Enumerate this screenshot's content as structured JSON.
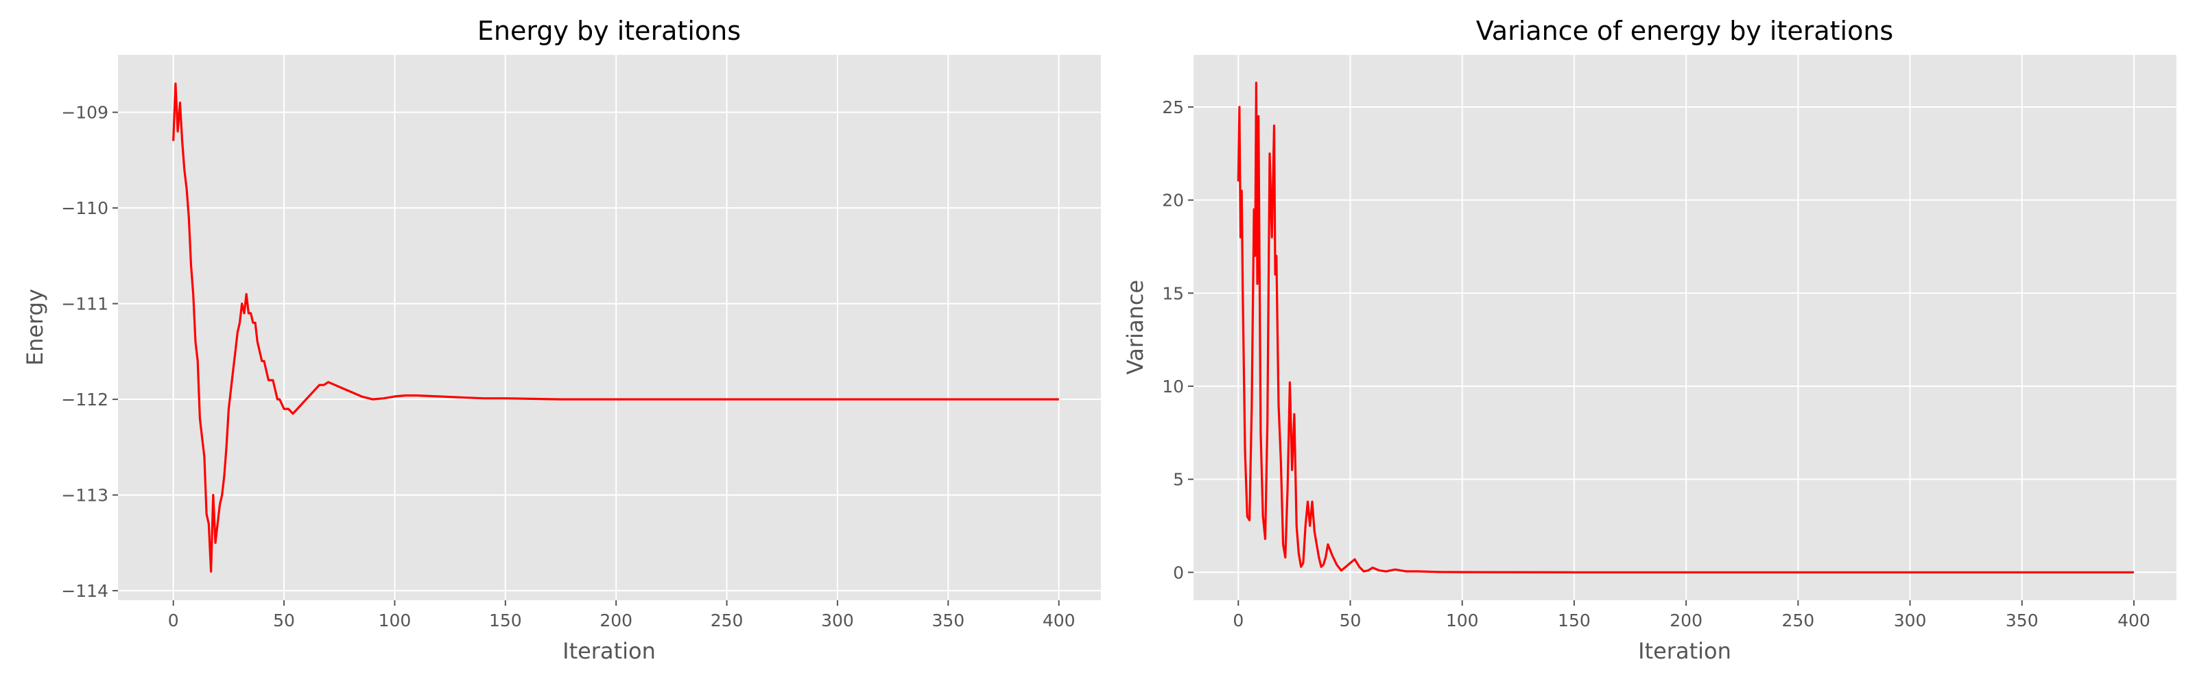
{
  "chart_data": [
    {
      "type": "line",
      "title": "Energy by iterations",
      "xlabel": "Iteration",
      "ylabel": "Energy",
      "xlim": [
        -25,
        419
      ],
      "ylim": [
        -114.1,
        -108.4
      ],
      "xticks": [
        0,
        50,
        100,
        150,
        200,
        250,
        300,
        350,
        400
      ],
      "xtick_labels": [
        "0",
        "50",
        "100",
        "150",
        "200",
        "250",
        "300",
        "350",
        "400"
      ],
      "yticks": [
        -114,
        -113,
        -112,
        -111,
        -110,
        -109
      ],
      "ytick_labels": [
        "−114",
        "−113",
        "−112",
        "−111",
        "−110",
        "−109"
      ],
      "grid": true,
      "line_color": "#ff0000",
      "series": [
        {
          "x": [
            0,
            1,
            2,
            3,
            4,
            5,
            6,
            7,
            8,
            9,
            10,
            11,
            12,
            13,
            14,
            15,
            16,
            17,
            18,
            19,
            20,
            21,
            22,
            23,
            24,
            25,
            26,
            27,
            28,
            29,
            30,
            31,
            32,
            33,
            34,
            35,
            36,
            37,
            38,
            39,
            40,
            41,
            42,
            43,
            44,
            45,
            46,
            47,
            48,
            50,
            52,
            54,
            56,
            58,
            60,
            62,
            64,
            66,
            68,
            70,
            73,
            76,
            80,
            85,
            90,
            95,
            100,
            105,
            110,
            120,
            130,
            140,
            150,
            175,
            200,
            250,
            300,
            350,
            400
          ],
          "y": [
            -109.3,
            -108.7,
            -109.2,
            -108.9,
            -109.3,
            -109.6,
            -109.8,
            -110.1,
            -110.6,
            -110.9,
            -111.4,
            -111.6,
            -112.2,
            -112.4,
            -112.6,
            -113.2,
            -113.3,
            -113.8,
            -113.0,
            -113.5,
            -113.3,
            -113.1,
            -113.0,
            -112.8,
            -112.5,
            -112.1,
            -111.9,
            -111.7,
            -111.5,
            -111.3,
            -111.2,
            -111.0,
            -111.1,
            -110.9,
            -111.1,
            -111.1,
            -111.2,
            -111.2,
            -111.4,
            -111.5,
            -111.6,
            -111.6,
            -111.7,
            -111.8,
            -111.8,
            -111.8,
            -111.9,
            -112.0,
            -112.0,
            -112.1,
            -112.1,
            -112.15,
            -112.1,
            -112.05,
            -112.0,
            -111.95,
            -111.9,
            -111.85,
            -111.85,
            -111.82,
            -111.85,
            -111.88,
            -111.92,
            -111.97,
            -112.0,
            -111.99,
            -111.97,
            -111.96,
            -111.96,
            -111.97,
            -111.98,
            -111.99,
            -111.99,
            -112.0,
            -112.0,
            -112.0,
            -112.0,
            -112.0,
            -112.0
          ]
        }
      ]
    },
    {
      "type": "line",
      "title": "Variance of energy by iterations",
      "xlabel": "Iteration",
      "ylabel": "Variance",
      "xlim": [
        -20,
        419
      ],
      "ylim": [
        -1.5,
        27.8
      ],
      "xticks": [
        0,
        50,
        100,
        150,
        200,
        250,
        300,
        350,
        400
      ],
      "xtick_labels": [
        "0",
        "50",
        "100",
        "150",
        "200",
        "250",
        "300",
        "350",
        "400"
      ],
      "yticks": [
        0,
        5,
        10,
        15,
        20,
        25
      ],
      "ytick_labels": [
        "0",
        "5",
        "10",
        "15",
        "20",
        "25"
      ],
      "grid": true,
      "line_color": "#ff0000",
      "series": [
        {
          "x": [
            0,
            0.5,
            1,
            1.5,
            2,
            3,
            4,
            5,
            6,
            7,
            7.5,
            8,
            8.5,
            9,
            10,
            11,
            12,
            13,
            14,
            15,
            16,
            16.5,
            17,
            18,
            19,
            20,
            21,
            22,
            23,
            24,
            25,
            26,
            27,
            28,
            29,
            30,
            31,
            32,
            33,
            34,
            35,
            36,
            37,
            38,
            39,
            40,
            42,
            44,
            46,
            48,
            50,
            52,
            54,
            56,
            58,
            60,
            63,
            66,
            70,
            75,
            80,
            90,
            100,
            150,
            200,
            300,
            400
          ],
          "y": [
            21,
            25,
            18,
            20.5,
            15,
            6.5,
            3,
            2.8,
            9,
            19.5,
            17,
            26.3,
            15.5,
            24.5,
            7.5,
            3,
            1.8,
            8,
            22.5,
            18,
            24,
            16,
            17,
            9,
            6,
            1.5,
            0.8,
            4.5,
            10.2,
            5.5,
            8.5,
            2.5,
            1,
            0.3,
            0.5,
            2.5,
            3.8,
            2.5,
            3.8,
            2.2,
            1.5,
            0.8,
            0.3,
            0.4,
            0.8,
            1.5,
            0.9,
            0.4,
            0.1,
            0.3,
            0.5,
            0.7,
            0.3,
            0.05,
            0.1,
            0.25,
            0.1,
            0.05,
            0.15,
            0.05,
            0.05,
            0.02,
            0.01,
            0,
            0,
            0,
            0
          ]
        }
      ]
    }
  ]
}
